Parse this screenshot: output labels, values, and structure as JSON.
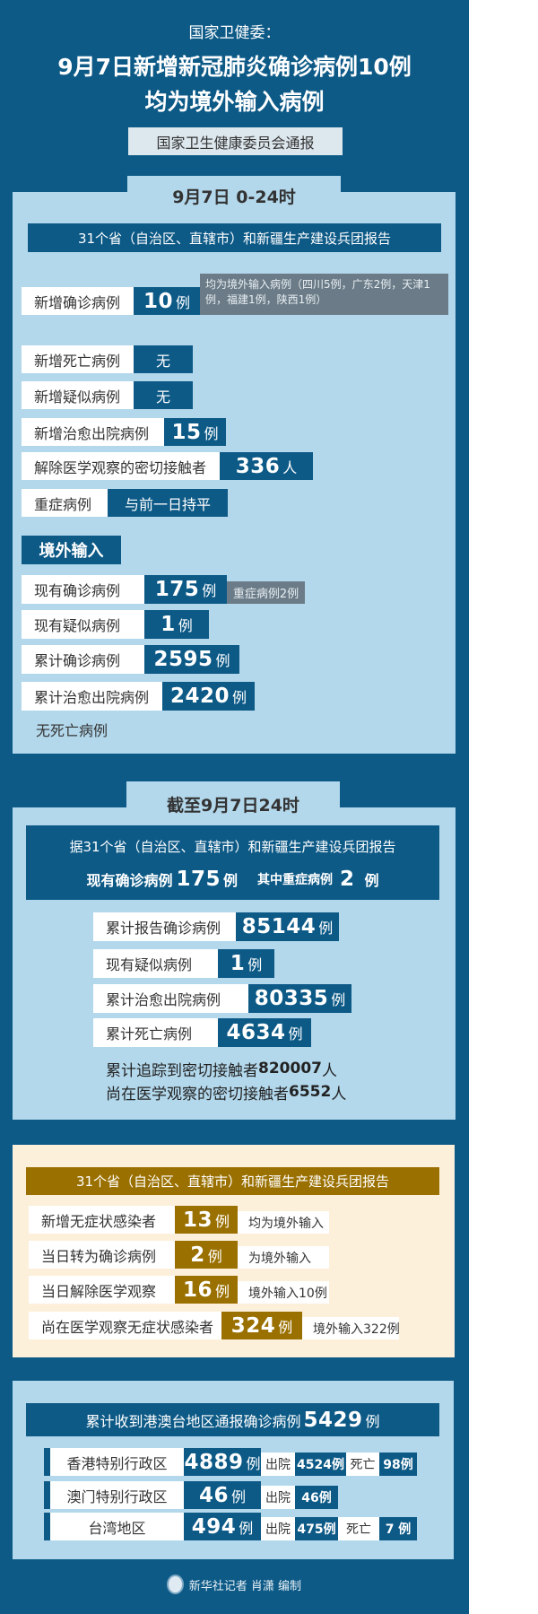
{
  "colors": {
    "background": "#0d5a87",
    "panel": "#b3d8ec",
    "cream_panel": "#fdf0da",
    "gold": "#9a7000",
    "note_gray": "#6b7c88"
  },
  "header": {
    "kicker": "国家卫健委：",
    "title_line1": "9月7日新增新冠肺炎确诊病例10例",
    "title_line2": "均为境外输入病例",
    "source": "国家卫生健康委员会通报"
  },
  "daily": {
    "tab": "9月7日 0-24时",
    "bar": "31个省（自治区、直辖市）和新疆生产建设兵团报告",
    "rows": [
      {
        "label": "新增确诊病例",
        "value": "10",
        "unit": "例",
        "note": "均为境外输入病例（四川5例，广东2例，天津1例，福建1例，陕西1例）"
      },
      {
        "label": "新增死亡病例",
        "value": "无",
        "unit": ""
      },
      {
        "label": "新增疑似病例",
        "value": "无",
        "unit": ""
      },
      {
        "label": "新增治愈出院病例",
        "value": "15",
        "unit": "例"
      },
      {
        "label": "解除医学观察的密切接触者",
        "value": "336",
        "unit": "人"
      },
      {
        "label": "重症病例",
        "value": "与前一日持平",
        "unit": ""
      }
    ],
    "import_heading": "境外输入",
    "import_rows": [
      {
        "label": "现有确诊病例",
        "value": "175",
        "unit": "例",
        "note": "重症病例2例"
      },
      {
        "label": "现有疑似病例",
        "value": "1",
        "unit": "例"
      },
      {
        "label": "累计确诊病例",
        "value": "2595",
        "unit": "例"
      },
      {
        "label": "累计治愈出院病例",
        "value": "2420",
        "unit": "例"
      }
    ],
    "no_death": "无死亡病例"
  },
  "cumulative": {
    "tab": "截至9月7日24时",
    "bar_line1": "据31个省（自治区、直辖市）和新疆生产建设兵团报告",
    "current_label": "现有确诊病例",
    "current_value": "175",
    "current_unit": "例",
    "severe_label": "其中重症病例",
    "severe_value": "2",
    "severe_unit": "例",
    "rows": [
      {
        "label": "累计报告确诊病例",
        "value": "85144",
        "unit": "例"
      },
      {
        "label": "现有疑似病例",
        "value": "1",
        "unit": "例"
      },
      {
        "label": "累计治愈出院病例",
        "value": "80335",
        "unit": "例"
      },
      {
        "label": "累计死亡病例",
        "value": "4634",
        "unit": "例"
      }
    ],
    "traced_text": "累计追踪到密切接触者",
    "traced_value": "820007",
    "traced_unit": "人",
    "observing_text": "尚在医学观察的密切接触者",
    "observing_value": "6552",
    "observing_unit": "人"
  },
  "asymptomatic": {
    "bar": "31个省（自治区、直辖市）和新疆生产建设兵团报告",
    "rows": [
      {
        "label": "新增无症状感染者",
        "value": "13",
        "unit": "例",
        "note": "均为境外输入"
      },
      {
        "label": "当日转为确诊病例",
        "value": "2",
        "unit": "例",
        "note": "为境外输入"
      },
      {
        "label": "当日解除医学观察",
        "value": "16",
        "unit": "例",
        "note": "境外输入10例"
      },
      {
        "label": "尚在医学观察无症状感染者",
        "value": "324",
        "unit": "例",
        "note": "境外输入322例"
      }
    ]
  },
  "hmt": {
    "bar_text": "累计收到港澳台地区通报确诊病例",
    "bar_value": "5429",
    "bar_unit": "例",
    "rows": [
      {
        "region": "香港特别行政区",
        "value": "4889",
        "unit": "例",
        "discharged_label": "出院",
        "discharged": "4524例",
        "deaths_label": "死亡",
        "deaths": "98例"
      },
      {
        "region": "澳门特别行政区",
        "value": "46",
        "unit": "例",
        "discharged_label": "出院",
        "discharged": "46例"
      },
      {
        "region": "台湾地区",
        "value": "494",
        "unit": "例",
        "discharged_label": "出院",
        "discharged": "475例",
        "deaths_label": "死亡",
        "deaths": "7 例"
      }
    ]
  },
  "footer": {
    "credit": "新华社记者 肖潇  编制",
    "logo_icon": "xinhua-logo-icon"
  }
}
